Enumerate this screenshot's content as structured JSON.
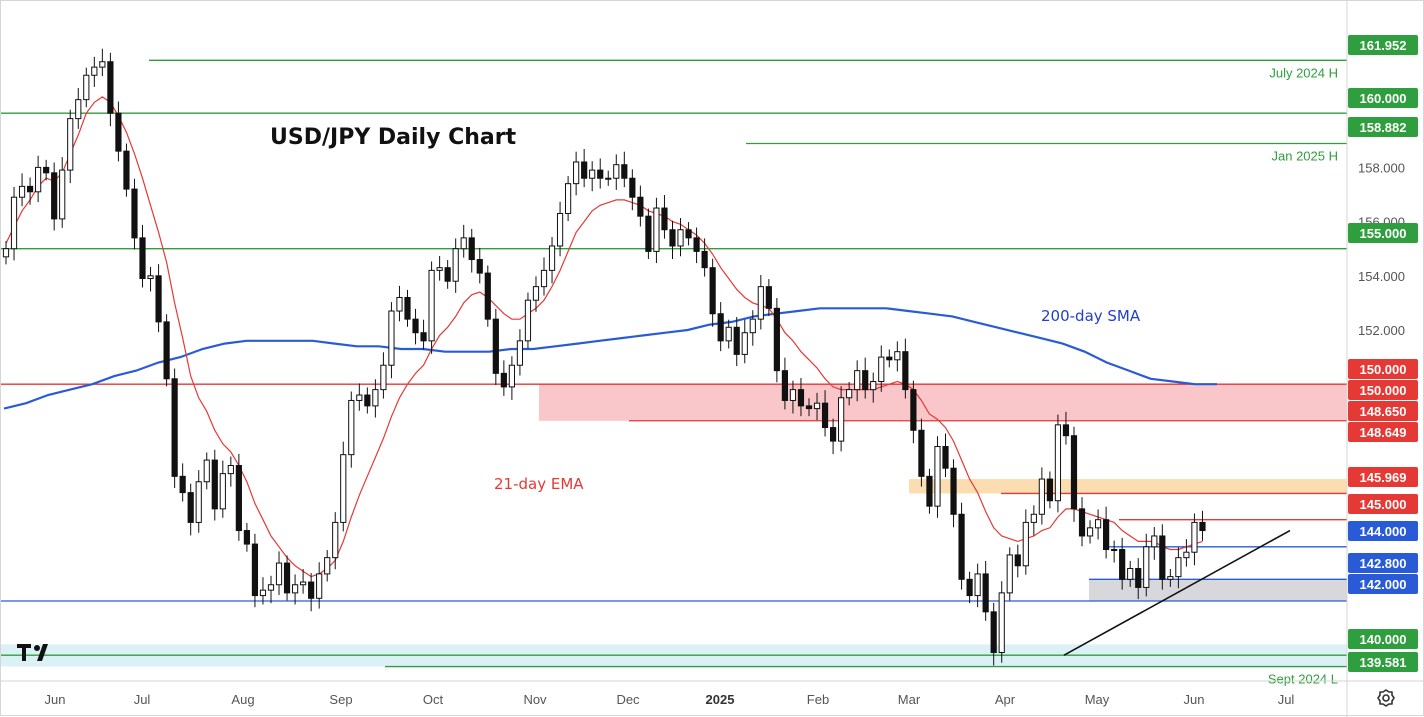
{
  "chart_data": {
    "type": "candlestick",
    "title": "USD/JPY Daily Chart",
    "x_tick_labels": [
      "Jun",
      "Jul",
      "Aug",
      "Sep",
      "Oct",
      "Nov",
      "Dec",
      "2025",
      "Feb",
      "Mar",
      "Apr",
      "May",
      "Jun",
      "Jul"
    ],
    "y_tick_labels": [
      "158.000",
      "156.000",
      "154.000",
      "152.000"
    ],
    "ylim": [
      139.0,
      162.5
    ],
    "annotations": {
      "ema_label": "21-day EMA",
      "sma_label": "200-day SMA",
      "ema_color": "#e53935",
      "sma_color": "#2a5bd7"
    },
    "levels": [
      {
        "price": 161.952,
        "label": "161.952",
        "color": "#2e9e3e",
        "note": "July 2024 H"
      },
      {
        "price": 160.0,
        "label": "160.000",
        "color": "#2e9e3e"
      },
      {
        "price": 158.882,
        "label": "158.882",
        "color": "#2e9e3e",
        "note": "Jan 2025 H"
      },
      {
        "price": 155.0,
        "label": "155.000",
        "color": "#2e9e3e"
      },
      {
        "price": 150.0,
        "label": "150.000",
        "color": "#e53935"
      },
      {
        "price": 150.0,
        "label": "150.000",
        "color": "#e53935"
      },
      {
        "price": 148.65,
        "label": "148.650",
        "color": "#e53935"
      },
      {
        "price": 148.649,
        "label": "148.649",
        "color": "#e53935"
      },
      {
        "price": 145.969,
        "label": "145.969",
        "color": "#e53935"
      },
      {
        "price": 145.0,
        "label": "145.000",
        "color": "#e53935"
      },
      {
        "price": 144.0,
        "label": "144.000",
        "color": "#2a5bd7"
      },
      {
        "price": 142.8,
        "label": "142.800",
        "color": "#2a5bd7"
      },
      {
        "price": 142.0,
        "label": "142.000",
        "color": "#2a5bd7"
      },
      {
        "price": 140.0,
        "label": "140.000",
        "color": "#2e9e3e"
      },
      {
        "price": 139.581,
        "label": "139.581",
        "color": "#2e9e3e",
        "note": "Sept 2024 L"
      }
    ],
    "zones": [
      {
        "name": "resistance-zone-150",
        "low": 148.65,
        "high": 150.0,
        "color": "#f8c0c4"
      },
      {
        "name": "resistance-zone-146",
        "low": 145.969,
        "high": 146.5,
        "color": "#fbd9a8"
      },
      {
        "name": "support-zone-142",
        "low": 142.0,
        "high": 142.8,
        "color": "#d3d3d8"
      },
      {
        "name": "support-zone-140",
        "low": 139.581,
        "high": 140.4,
        "color": "#d8f0f4"
      }
    ],
    "trendline": {
      "from": {
        "date": "2025-04-22",
        "price": 140.0
      },
      "to": {
        "date": "2025-07-05",
        "price": 144.6
      }
    },
    "series": [
      {
        "name": "USD/JPY",
        "kind": "candles",
        "closes": [
          155.0,
          156.9,
          157.3,
          157.1,
          158.0,
          157.8,
          156.1,
          157.9,
          159.8,
          160.5,
          161.4,
          161.7,
          161.9,
          160.0,
          158.6,
          157.2,
          155.4,
          153.9,
          154.0,
          152.3,
          150.2,
          146.6,
          146.0,
          144.9,
          146.4,
          147.2,
          145.4,
          146.7,
          147.0,
          144.6,
          144.1,
          142.2,
          142.4,
          142.6,
          143.4,
          142.3,
          142.6,
          142.7,
          142.1,
          143.0,
          143.6,
          144.9,
          147.4,
          149.4,
          149.6,
          149.2,
          149.8,
          150.7,
          152.7,
          153.2,
          152.4,
          151.9,
          151.6,
          154.2,
          154.3,
          153.8,
          155.0,
          155.4,
          154.6,
          154.1,
          152.4,
          150.4,
          149.9,
          150.7,
          151.6,
          153.1,
          153.6,
          154.2,
          155.1,
          156.3,
          157.4,
          158.2,
          157.6,
          157.9,
          157.6,
          157.6,
          158.1,
          157.6,
          156.9,
          156.2,
          154.9,
          156.5,
          155.7,
          155.1,
          155.7,
          155.4,
          154.9,
          154.3,
          152.6,
          151.6,
          152.1,
          151.1,
          151.9,
          152.4,
          153.6,
          152.8,
          150.5,
          149.4,
          149.8,
          149.2,
          149.1,
          149.3,
          148.4,
          147.9,
          149.5,
          149.8,
          150.5,
          149.8,
          150.1,
          151.0,
          150.9,
          151.2,
          149.8,
          148.3,
          146.6,
          145.5,
          147.7,
          146.9,
          145.2,
          142.8,
          142.2,
          143.0,
          141.6,
          140.1,
          142.3,
          143.7,
          143.3,
          144.9,
          145.2,
          146.5,
          145.7,
          148.5,
          148.1,
          145.4,
          144.4,
          144.7,
          145.0,
          143.9,
          143.9,
          142.8,
          143.2,
          142.5,
          144.0,
          144.4,
          142.8,
          142.9,
          143.6,
          143.8,
          144.9,
          144.6
        ]
      },
      {
        "name": "21-day EMA",
        "kind": "line",
        "values": [
          155.2,
          155.8,
          156.4,
          156.8,
          157.3,
          157.6,
          157.5,
          157.8,
          158.5,
          159.2,
          160.0,
          160.4,
          160.6,
          160.4,
          159.9,
          159.3,
          158.5,
          157.6,
          156.6,
          155.6,
          154.5,
          153.0,
          151.7,
          150.3,
          149.5,
          149.0,
          148.3,
          147.8,
          147.5,
          147.0,
          146.4,
          145.6,
          145.0,
          144.4,
          144.0,
          143.6,
          143.3,
          143.1,
          142.9,
          143.0,
          143.2,
          143.5,
          144.2,
          145.1,
          145.9,
          146.6,
          147.3,
          148.0,
          148.8,
          149.5,
          150.0,
          150.4,
          150.7,
          151.3,
          151.8,
          152.1,
          152.5,
          153.0,
          153.3,
          153.4,
          153.2,
          152.9,
          152.6,
          152.4,
          152.4,
          152.6,
          152.8,
          153.1,
          153.6,
          154.2,
          154.9,
          155.6,
          156.0,
          156.4,
          156.6,
          156.7,
          156.8,
          156.8,
          156.7,
          156.6,
          156.4,
          156.3,
          156.2,
          156.0,
          155.9,
          155.7,
          155.5,
          155.2,
          154.8,
          154.3,
          153.9,
          153.5,
          153.2,
          153.0,
          152.9,
          152.8,
          152.4,
          151.9,
          151.6,
          151.2,
          150.9,
          150.6,
          150.2,
          149.9,
          149.8,
          149.8,
          149.8,
          149.8,
          149.8,
          149.9,
          150.0,
          150.1,
          150.0,
          149.8,
          149.4,
          148.9,
          148.7,
          148.4,
          147.9,
          147.2,
          146.5,
          146.0,
          145.3,
          144.7,
          144.4,
          144.3,
          144.2,
          144.3,
          144.4,
          144.6,
          144.7,
          145.1,
          145.4,
          145.4,
          145.3,
          145.2,
          145.1,
          145.0,
          144.9,
          144.6,
          144.4,
          144.2,
          144.2,
          144.2,
          144.0,
          143.9,
          143.9,
          144.0,
          144.1,
          144.2
        ]
      },
      {
        "name": "200-day SMA",
        "kind": "line",
        "values": [
          149.1,
          149.3,
          149.6,
          149.8,
          150.0,
          150.3,
          150.5,
          150.8,
          151.0,
          151.3,
          151.5,
          151.6,
          151.6,
          151.6,
          151.6,
          151.5,
          151.4,
          151.4,
          151.3,
          151.3,
          151.2,
          151.2,
          151.2,
          151.3,
          151.3,
          151.4,
          151.5,
          151.6,
          151.7,
          151.8,
          151.9,
          152.0,
          152.2,
          152.3,
          152.5,
          152.6,
          152.7,
          152.8,
          152.8,
          152.8,
          152.8,
          152.7,
          152.6,
          152.5,
          152.3,
          152.1,
          151.9,
          151.7,
          151.5,
          151.2,
          150.8,
          150.5,
          150.2,
          150.1,
          150.0,
          150.0
        ]
      }
    ]
  },
  "branding": {
    "logo_text": "TV"
  }
}
